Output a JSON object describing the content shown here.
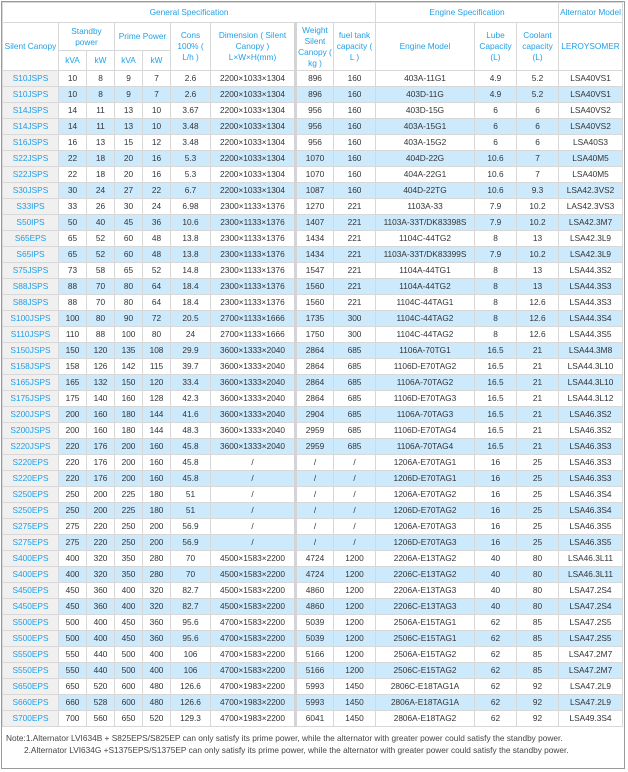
{
  "header": {
    "general": "General Specification",
    "engine": "Engine Specification",
    "alternator": "Alternator Model",
    "silent_canopy": "Silent Canopy",
    "standby_power": "Standby power",
    "prime_power": "Prime Power",
    "cons": "Cons 100% ( L/h )",
    "dimension": "Dimension ( Silent Canopy ) L×W×H(mm)",
    "weight": "Weight Silent Canopy ( kg )",
    "fuel_tank": "fuel tank capacity ( L )",
    "engine_model": "Engine Model",
    "lube": "Lube Capacity (L)",
    "coolant": "Coolant capacity (L)",
    "leroysomer": "LEROYSOMER",
    "kva": "kVA",
    "kw": "kW"
  },
  "rows": [
    [
      "S10JSPS",
      "10",
      "8",
      "9",
      "7",
      "2.6",
      "2200×1033×1304",
      "896",
      "160",
      "403A-11G1",
      "4.9",
      "5.2",
      "LSA40VS1"
    ],
    [
      "S10JSPS",
      "10",
      "8",
      "9",
      "7",
      "2.6",
      "2200×1033×1304",
      "896",
      "160",
      "403D-11G",
      "4.9",
      "5.2",
      "LSA40VS1"
    ],
    [
      "S14JSPS",
      "14",
      "11",
      "13",
      "10",
      "3.67",
      "2200×1033×1304",
      "956",
      "160",
      "403D-15G",
      "6",
      "6",
      "LSA40VS2"
    ],
    [
      "S14JSPS",
      "14",
      "11",
      "13",
      "10",
      "3.48",
      "2200×1033×1304",
      "956",
      "160",
      "403A-15G1",
      "6",
      "6",
      "LSA40VS2"
    ],
    [
      "S16JSPS",
      "16",
      "13",
      "15",
      "12",
      "3.48",
      "2200×1033×1304",
      "956",
      "160",
      "403A-15G2",
      "6",
      "6",
      "LSA40S3"
    ],
    [
      "S22JSPS",
      "22",
      "18",
      "20",
      "16",
      "5.3",
      "2200×1033×1304",
      "1070",
      "160",
      "404D-22G",
      "10.6",
      "7",
      "LSA40M5"
    ],
    [
      "S22JSPS",
      "22",
      "18",
      "20",
      "16",
      "5.3",
      "2200×1033×1304",
      "1070",
      "160",
      "404A-22G1",
      "10.6",
      "7",
      "LSA40M5"
    ],
    [
      "S30JSPS",
      "30",
      "24",
      "27",
      "22",
      "6.7",
      "2200×1033×1304",
      "1087",
      "160",
      "404D-22TG",
      "10.6",
      "9.3",
      "LSA42.3VS2"
    ],
    [
      "S33IPS",
      "33",
      "26",
      "30",
      "24",
      "6.98",
      "2300×1133×1376",
      "1270",
      "221",
      "1103A-33",
      "7.9",
      "10.2",
      "LAS42.3VS3"
    ],
    [
      "S50IPS",
      "50",
      "40",
      "45",
      "36",
      "10.6",
      "2300×1133×1376",
      "1407",
      "221",
      "1103A-33T/DK83398S",
      "7.9",
      "10.2",
      "LSA42.3M7"
    ],
    [
      "S65EPS",
      "65",
      "52",
      "60",
      "48",
      "13.8",
      "2300×1133×1376",
      "1434",
      "221",
      "1104C-44TG2",
      "8",
      "13",
      "LSA42.3L9"
    ],
    [
      "S65IPS",
      "65",
      "52",
      "60",
      "48",
      "13.8",
      "2300×1133×1376",
      "1434",
      "221",
      "1103A-33T/DK83399S",
      "7.9",
      "10.2",
      "LSA42.3L9"
    ],
    [
      "S75JSPS",
      "73",
      "58",
      "65",
      "52",
      "14.8",
      "2300×1133×1376",
      "1547",
      "221",
      "1104A-44TG1",
      "8",
      "13",
      "LSA44.3S2"
    ],
    [
      "S88JSPS",
      "88",
      "70",
      "80",
      "64",
      "18.4",
      "2300×1133×1376",
      "1560",
      "221",
      "1104A-44TG2",
      "8",
      "13",
      "LSA44.3S3"
    ],
    [
      "S88JSPS",
      "88",
      "70",
      "80",
      "64",
      "18.4",
      "2300×1133×1376",
      "1560",
      "221",
      "1104C-44TAG1",
      "8",
      "12.6",
      "LSA44.3S3"
    ],
    [
      "S100JSPS",
      "100",
      "80",
      "90",
      "72",
      "20.5",
      "2700×1133×1666",
      "1735",
      "300",
      "1104C-44TAG2",
      "8",
      "12.6",
      "LSA44.3S4"
    ],
    [
      "S110JSPS",
      "110",
      "88",
      "100",
      "80",
      "24",
      "2700×1133×1666",
      "1750",
      "300",
      "1104C-44TAG2",
      "8",
      "12.6",
      "LSA44.3S5"
    ],
    [
      "S150JSPS",
      "150",
      "120",
      "135",
      "108",
      "29.9",
      "3600×1333×2040",
      "2864",
      "685",
      "1106A-70TG1",
      "16.5",
      "21",
      "LSA44.3M8"
    ],
    [
      "S158JSPS",
      "158",
      "126",
      "142",
      "115",
      "39.7",
      "3600×1333×2040",
      "2864",
      "685",
      "1106D-E70TAG2",
      "16.5",
      "21",
      "LSA44.3L10"
    ],
    [
      "S165JSPS",
      "165",
      "132",
      "150",
      "120",
      "33.4",
      "3600×1333×2040",
      "2864",
      "685",
      "1106A-70TAG2",
      "16.5",
      "21",
      "LSA44.3L10"
    ],
    [
      "S175JSPS",
      "175",
      "140",
      "160",
      "128",
      "42.3",
      "3600×1333×2040",
      "2864",
      "685",
      "1106D-E70TAG3",
      "16.5",
      "21",
      "LSA44.3L12"
    ],
    [
      "S200JSPS",
      "200",
      "160",
      "180",
      "144",
      "41.6",
      "3600×1333×2040",
      "2904",
      "685",
      "1106A-70TAG3",
      "16.5",
      "21",
      "LSA46.3S2"
    ],
    [
      "S200JSPS",
      "200",
      "160",
      "180",
      "144",
      "48.3",
      "3600×1333×2040",
      "2959",
      "685",
      "1106D-E70TAG4",
      "16.5",
      "21",
      "LSA46.3S2"
    ],
    [
      "S220JSPS",
      "220",
      "176",
      "200",
      "160",
      "45.8",
      "3600×1333×2040",
      "2959",
      "685",
      "1106A-70TAG4",
      "16.5",
      "21",
      "LSA46.3S3"
    ],
    [
      "S220EPS",
      "220",
      "176",
      "200",
      "160",
      "45.8",
      "/",
      "/",
      "/",
      "1206A-E70TAG1",
      "16",
      "25",
      "LSA46.3S3"
    ],
    [
      "S220EPS",
      "220",
      "176",
      "200",
      "160",
      "45.8",
      "/",
      "/",
      "/",
      "1206D-E70TAG1",
      "16",
      "25",
      "LSA46.3S3"
    ],
    [
      "S250EPS",
      "250",
      "200",
      "225",
      "180",
      "51",
      "/",
      "/",
      "/",
      "1206A-E70TAG2",
      "16",
      "25",
      "LSA46.3S4"
    ],
    [
      "S250EPS",
      "250",
      "200",
      "225",
      "180",
      "51",
      "/",
      "/",
      "/",
      "1206D-E70TAG2",
      "16",
      "25",
      "LSA46.3S4"
    ],
    [
      "S275EPS",
      "275",
      "220",
      "250",
      "200",
      "56.9",
      "/",
      "/",
      "/",
      "1206A-E70TAG3",
      "16",
      "25",
      "LSA46.3S5"
    ],
    [
      "S275EPS",
      "275",
      "220",
      "250",
      "200",
      "56.9",
      "/",
      "/",
      "/",
      "1206D-E70TAG3",
      "16",
      "25",
      "LSA46.3S5"
    ],
    [
      "S400EPS",
      "400",
      "320",
      "350",
      "280",
      "70",
      "4500×1583×2200",
      "4724",
      "1200",
      "2206A-E13TAG2",
      "40",
      "80",
      "LSA46.3L11"
    ],
    [
      "S400EPS",
      "400",
      "320",
      "350",
      "280",
      "70",
      "4500×1583×2200",
      "4724",
      "1200",
      "2206C-E13TAG2",
      "40",
      "80",
      "LSA46.3L11"
    ],
    [
      "S450EPS",
      "450",
      "360",
      "400",
      "320",
      "82.7",
      "4500×1583×2200",
      "4860",
      "1200",
      "2206A-E13TAG3",
      "40",
      "80",
      "LSA47.2S4"
    ],
    [
      "S450EPS",
      "450",
      "360",
      "400",
      "320",
      "82.7",
      "4500×1583×2200",
      "4860",
      "1200",
      "2206C-E13TAG3",
      "40",
      "80",
      "LSA47.2S4"
    ],
    [
      "S500EPS",
      "500",
      "400",
      "450",
      "360",
      "95.6",
      "4700×1583×2200",
      "5039",
      "1200",
      "2506A-E15TAG1",
      "62",
      "85",
      "LSA47.2S5"
    ],
    [
      "S500EPS",
      "500",
      "400",
      "450",
      "360",
      "95.6",
      "4700×1583×2200",
      "5039",
      "1200",
      "2506C-E15TAG1",
      "62",
      "85",
      "LSA47.2S5"
    ],
    [
      "S550EPS",
      "550",
      "440",
      "500",
      "400",
      "106",
      "4700×1583×2200",
      "5166",
      "1200",
      "2506A-E15TAG2",
      "62",
      "85",
      "LSA47.2M7"
    ],
    [
      "S550EPS",
      "550",
      "440",
      "500",
      "400",
      "106",
      "4700×1583×2200",
      "5166",
      "1200",
      "2506C-E15TAG2",
      "62",
      "85",
      "LSA47.2M7"
    ],
    [
      "S650EPS",
      "650",
      "520",
      "600",
      "480",
      "126.6",
      "4700×1983×2200",
      "5993",
      "1450",
      "2806C-E18TAG1A",
      "62",
      "92",
      "LSA47.2L9"
    ],
    [
      "S660EPS",
      "660",
      "528",
      "600",
      "480",
      "126.6",
      "4700×1983×2200",
      "5993",
      "1450",
      "2806A-E18TAG1A",
      "62",
      "92",
      "LSA47.2L9"
    ],
    [
      "S700EPS",
      "700",
      "560",
      "650",
      "520",
      "129.3",
      "4700×1983×2200",
      "6041",
      "1450",
      "2806A-E18TAG2",
      "62",
      "92",
      "LSA49.3S4"
    ]
  ],
  "notes": [
    "Note:1.Alternator LVI634B + S825EPS/S825EP can only satisfy its prime power, while the alternator with greater power could satisfy the standby power.",
    "2.Alternator LVI634G +S1375EPS/S1375EP can only satisfy its prime power, while the alternator with greater power could satisfy the standby power."
  ]
}
